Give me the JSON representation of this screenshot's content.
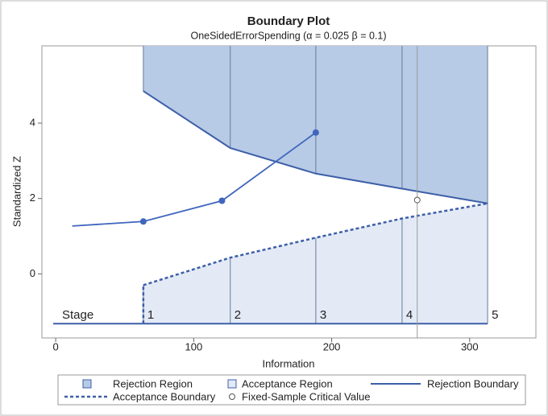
{
  "chart_data": {
    "type": "boundary",
    "title": "Boundary Plot",
    "subtitle": "OneSidedErrorSpending (α = 0.025  β = 0.1)",
    "x_label": "Information",
    "y_label": "Standardized Z",
    "xlim": [
      -10,
      348
    ],
    "ylim": [
      -1.7,
      6.05
    ],
    "xticks": [
      0,
      100,
      200,
      300
    ],
    "yticks": [
      0,
      2,
      4
    ],
    "region_bottom": -1.32,
    "stage_label": "Stage",
    "stages": {
      "labels": [
        "1",
        "2",
        "3",
        "4",
        "5"
      ],
      "information": [
        63.5,
        126.5,
        188.5,
        251,
        313
      ],
      "rejection": [
        4.85,
        3.34,
        2.66,
        2.26,
        1.87
      ],
      "acceptance": [
        -0.3,
        0.43,
        0.96,
        1.47,
        1.87
      ]
    },
    "observed": {
      "x": [
        12,
        63.5,
        120.5,
        188.5
      ],
      "values": [
        1.27,
        1.39,
        1.94,
        3.75
      ],
      "markers": [
        false,
        true,
        true,
        true
      ],
      "color": "#3f66bd"
    },
    "critical_value": {
      "x": 262,
      "value": 1.96
    },
    "colors": {
      "rejection_region": "#b7cae6",
      "acceptance_region": "#e3eaf6",
      "boundary": "#3d5fa8",
      "stage_line": "#667a99",
      "critical_line": "#9a9a9a"
    },
    "legend": {
      "rejection_region": "Rejection Region",
      "acceptance_region": "Acceptance Region",
      "rejection_boundary": "Rejection Boundary",
      "acceptance_boundary": "Acceptance Boundary",
      "critical_value": "Fixed-Sample Critical Value"
    }
  }
}
